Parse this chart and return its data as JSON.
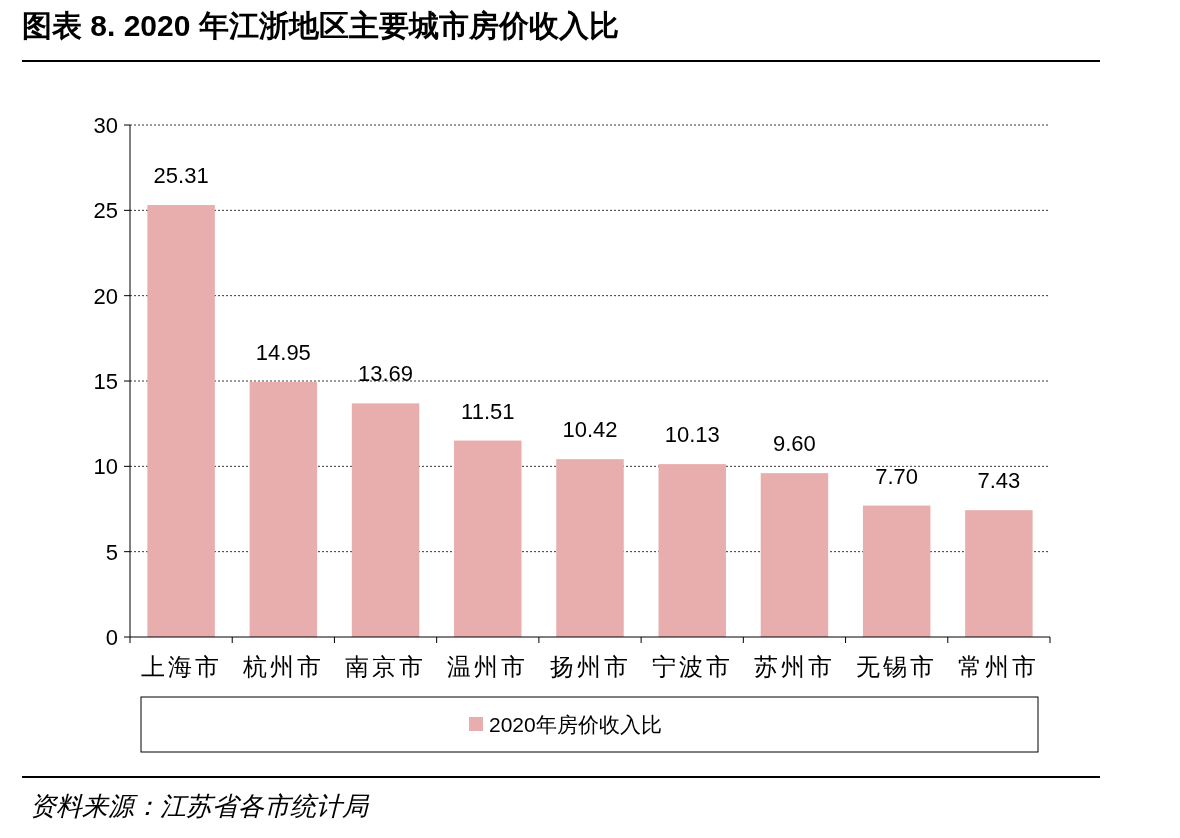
{
  "chart_data": {
    "type": "bar",
    "title": "图表 8. 2020 年江浙地区主要城市房价收入比",
    "categories": [
      "上海市",
      "杭州市",
      "南京市",
      "温州市",
      "扬州市",
      "宁波市",
      "苏州市",
      "无锡市",
      "常州市"
    ],
    "series": [
      {
        "name": "2020年房价收入比",
        "color": "#e8adad",
        "values": [
          25.31,
          14.95,
          13.69,
          11.51,
          10.42,
          10.13,
          9.6,
          7.7,
          7.43
        ]
      }
    ],
    "value_labels": [
      "25.31",
      "14.95",
      "13.69",
      "11.51",
      "10.42",
      "10.13",
      "9.60",
      "7.70",
      "7.43"
    ],
    "ylim": [
      0,
      30
    ],
    "yticks": [
      0,
      5,
      10,
      15,
      20,
      25,
      30
    ],
    "grid": "y",
    "legend": "bottom",
    "annotations": [
      "资料来源：江苏省各市统计局"
    ]
  }
}
